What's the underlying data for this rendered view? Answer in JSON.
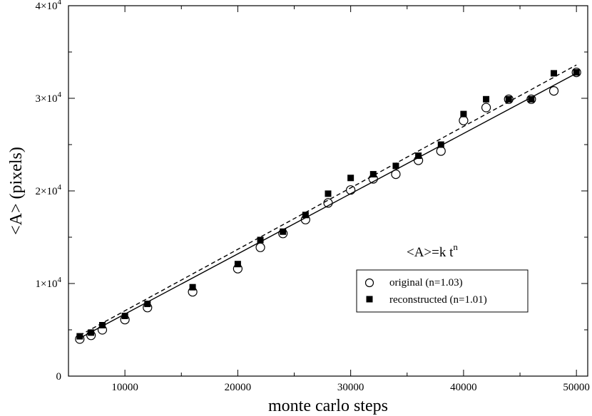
{
  "chart_data": {
    "type": "scatter",
    "xlabel": "monte carlo steps",
    "ylabel": "<A> (pixels)",
    "xlim": [
      5000,
      51000
    ],
    "ylim": [
      0,
      40000
    ],
    "x_ticks": [
      10000,
      20000,
      30000,
      40000,
      50000
    ],
    "x_tick_labels": [
      "10000",
      "20000",
      "30000",
      "40000",
      "50000"
    ],
    "y_ticks": [
      0,
      10000,
      20000,
      30000,
      40000
    ],
    "y_tick_labels": [
      {
        "base": "0",
        "exp": ""
      },
      {
        "base": "1×10",
        "exp": "4"
      },
      {
        "base": "2×10",
        "exp": "4"
      },
      {
        "base": "3×10",
        "exp": "4"
      },
      {
        "base": "4×10",
        "exp": "4"
      }
    ],
    "annotation": {
      "text": "<A>=k t",
      "sup": "n"
    },
    "legend": {
      "placement": "lower-right"
    },
    "series": [
      {
        "name": "original (n=1.03)",
        "marker": "open-circle",
        "x": [
          6000,
          7000,
          8000,
          10000,
          12000,
          16000,
          20000,
          22000,
          24000,
          26000,
          28000,
          30000,
          32000,
          34000,
          36000,
          38000,
          40000,
          42000,
          44000,
          46000,
          48000,
          50000
        ],
        "y": [
          4000,
          4400,
          5000,
          6100,
          7400,
          9100,
          11600,
          13900,
          15400,
          16900,
          18700,
          20100,
          21300,
          21800,
          23300,
          24300,
          27600,
          29000,
          29900,
          29900,
          30800,
          32800
        ],
        "fit": {
          "line": "solid",
          "x": [
            6000,
            50000
          ],
          "y": [
            4100,
            32700
          ]
        }
      },
      {
        "name": "reconstructed (n=1.01)",
        "marker": "filled-square",
        "x": [
          6000,
          7000,
          8000,
          10000,
          12000,
          16000,
          20000,
          22000,
          24000,
          26000,
          28000,
          30000,
          32000,
          34000,
          36000,
          38000,
          40000,
          42000,
          44000,
          46000,
          48000,
          50000
        ],
        "y": [
          4300,
          4700,
          5500,
          6500,
          7800,
          9600,
          12100,
          14700,
          15600,
          17400,
          19700,
          21400,
          21800,
          22700,
          23800,
          25000,
          28300,
          29900,
          29900,
          29900,
          32700,
          32800
        ],
        "fit": {
          "line": "dashed",
          "x": [
            6000,
            50000
          ],
          "y": [
            4400,
            33600
          ]
        }
      }
    ]
  }
}
